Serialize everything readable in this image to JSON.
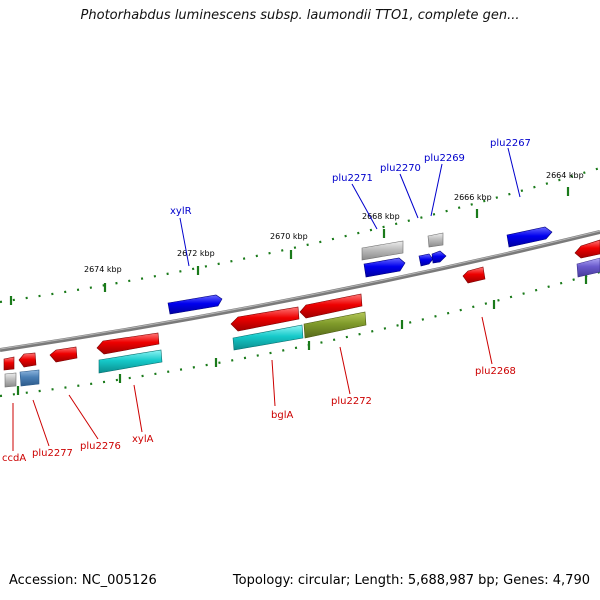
{
  "title": "Photorhabdus luminescens subsp. laumondii TTO1, complete gen...",
  "footer": {
    "accession": "Accession: NC_005126",
    "summary": "Topology: circular; Length: 5,688,987 bp; Genes: 4,790"
  },
  "colors": {
    "backbone": "#808080",
    "tick": "#1a7a1a",
    "forward_label": "#0000cc",
    "reverse_label": "#cc0000"
  },
  "scale_labels": [
    "2674 kbp",
    "2672 kbp",
    "2670 kbp",
    "2668 kbp",
    "2666 kbp",
    "2664 kbp"
  ],
  "forward_gene_labels": [
    "xylR",
    "plu2271",
    "plu2270",
    "plu2269",
    "plu2267"
  ],
  "reverse_gene_labels": [
    "ccdA",
    "plu2277",
    "plu2276",
    "xylA",
    "bglA",
    "plu2272",
    "plu2268"
  ]
}
